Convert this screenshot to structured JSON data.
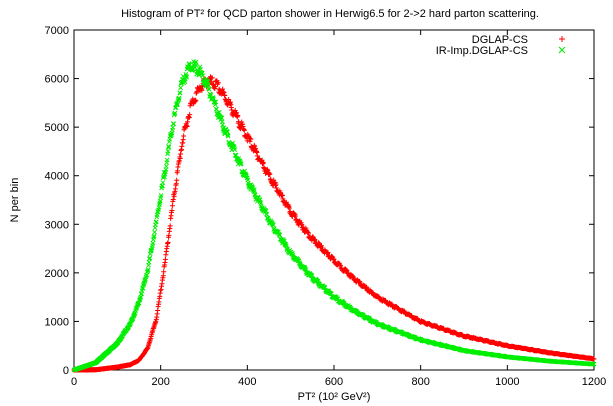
{
  "chart_data": {
    "type": "scatter",
    "title": "Histogram of PT² for QCD parton shower in Herwig6.5 for 2->2 hard parton scattering.",
    "xlabel": "PT² (10² GeV²)",
    "ylabel": "N per bin",
    "xlim": [
      0,
      1200
    ],
    "ylim": [
      0,
      7000
    ],
    "xticks": [
      "0",
      "200",
      "400",
      "600",
      "800",
      "1000",
      "1200"
    ],
    "yticks": [
      "0",
      "1000",
      "2000",
      "3000",
      "4000",
      "5000",
      "6000",
      "7000"
    ],
    "legend_position": "top-right",
    "grid": false,
    "series": [
      {
        "name": "DGLAP-CS",
        "color": "#ff0000",
        "marker": "+",
        "x": [
          0,
          50,
          100,
          130,
          150,
          170,
          190,
          210,
          230,
          250,
          270,
          290,
          310,
          330,
          350,
          375,
          400,
          450,
          500,
          550,
          600,
          650,
          700,
          800,
          900,
          1000,
          1100,
          1200
        ],
        "y": [
          0,
          5,
          60,
          110,
          200,
          450,
          1050,
          2200,
          3550,
          4700,
          5450,
          5800,
          5950,
          5850,
          5600,
          5200,
          4800,
          4000,
          3250,
          2700,
          2250,
          1850,
          1500,
          1000,
          700,
          500,
          350,
          230
        ]
      },
      {
        "name": "IR-Imp.DGLAP-CS",
        "color": "#00ee00",
        "marker": "x",
        "x": [
          0,
          50,
          100,
          130,
          150,
          170,
          190,
          210,
          230,
          250,
          270,
          290,
          310,
          330,
          350,
          375,
          400,
          450,
          500,
          550,
          600,
          650,
          700,
          800,
          900,
          1000,
          1100,
          1200
        ],
        "y": [
          0,
          150,
          550,
          950,
          1400,
          2050,
          3050,
          4100,
          5150,
          5950,
          6300,
          6150,
          5800,
          5350,
          4900,
          4400,
          3900,
          3100,
          2400,
          1900,
          1500,
          1200,
          950,
          620,
          400,
          270,
          180,
          120
        ]
      }
    ]
  }
}
